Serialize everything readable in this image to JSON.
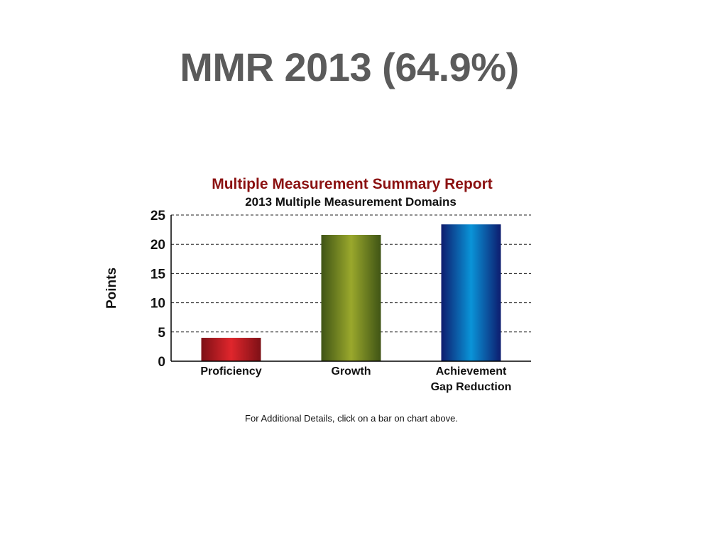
{
  "slide": {
    "title": "MMR 2013 (64.9%)"
  },
  "chart_data": {
    "type": "bar",
    "title": "Multiple Measurement Summary Report",
    "subtitle": "2013 Multiple Measurement Domains",
    "ylabel": "Points",
    "xlabel": "",
    "ylim": [
      0,
      25
    ],
    "yticks": [
      0,
      5,
      10,
      15,
      20,
      25
    ],
    "grid": true,
    "categories": [
      [
        "Proficiency"
      ],
      [
        "Growth"
      ],
      [
        "Achievement",
        "Gap Reduction"
      ]
    ],
    "values": [
      4,
      21.6,
      23.4
    ],
    "colors": [
      "#c81e25",
      "#7f9124",
      "#0a6fb8"
    ],
    "footnote": "For Additional Details, click on a bar on chart above.",
    "title_color": "#8b1111"
  }
}
